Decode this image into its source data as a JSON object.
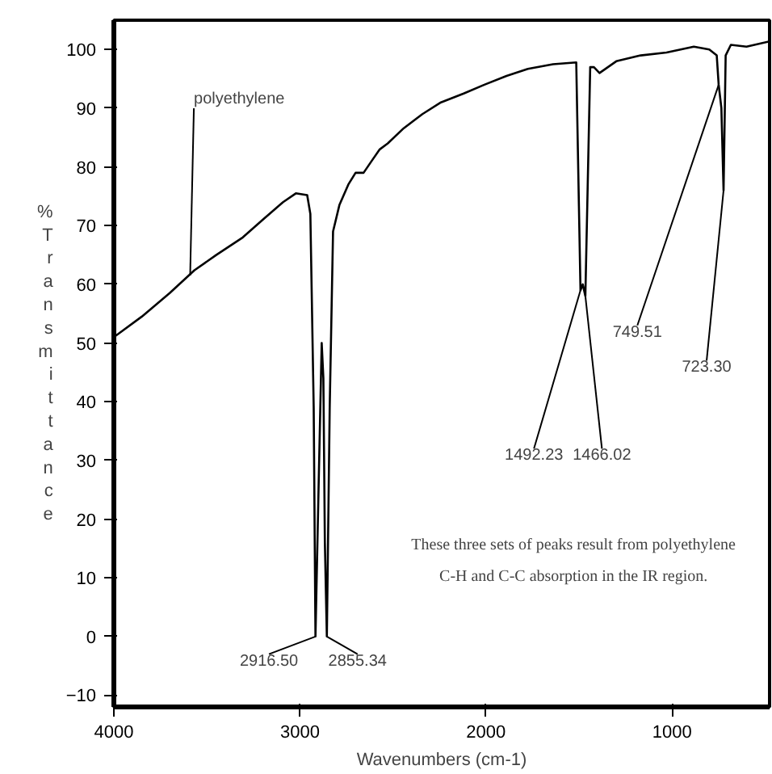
{
  "chart_data": {
    "type": "line",
    "xlabel": "Wavenumbers (cm-1)",
    "ylabel": "%Transmittance",
    "x": [
      4000,
      3850,
      3700,
      3567,
      3450,
      3307,
      3200,
      3091,
      3022,
      2961,
      2944,
      2926,
      2916.5,
      2900,
      2883,
      2874,
      2866,
      2855.34,
      2840,
      2822,
      2788,
      2740,
      2701,
      2658,
      2615,
      2571,
      2528,
      2442,
      2342,
      2242,
      2120,
      2009,
      1890,
      1775,
      1640,
      1515,
      1492.23,
      1480,
      1466.02,
      1440,
      1420,
      1390,
      1300,
      1169,
      1030,
      883,
      800,
      760,
      749.51,
      735,
      723.3,
      712,
      684,
      600,
      476
    ],
    "series": [
      {
        "color": "#000000",
        "values": [
          51,
          54.5,
          58.5,
          62.4,
          65,
          68,
          71,
          74,
          75.5,
          75.2,
          72,
          39,
          0,
          25,
          50,
          44,
          16,
          0,
          39,
          69,
          73.5,
          77,
          79,
          79,
          81,
          83,
          84,
          86.6,
          89,
          91,
          92.5,
          94,
          95.5,
          96.7,
          97.5,
          97.8,
          59,
          60,
          58,
          97,
          97,
          96,
          98,
          99,
          99.5,
          100.5,
          100,
          99,
          94,
          90,
          76,
          99,
          100.8,
          100.5,
          101.4
        ]
      }
    ],
    "xlim": [
      4000,
      476
    ],
    "ylim": [
      -12,
      105
    ],
    "xticks": [
      4000,
      3000,
      2000,
      1000
    ],
    "yticks": [
      -10,
      0,
      10,
      20,
      30,
      40,
      50,
      60,
      70,
      80,
      90,
      100
    ],
    "annotations": [
      {
        "text": "polyethylene",
        "x": 3590,
        "y": 61.5
      },
      {
        "text": "2916.50",
        "x": 2916.5,
        "y": 0
      },
      {
        "text": "2855.34",
        "x": 2855.34,
        "y": 0
      },
      {
        "text": "1492.23",
        "x": 1492.23,
        "y": 59
      },
      {
        "text": "1466.02",
        "x": 1466.02,
        "y": 58
      },
      {
        "text": "749.51",
        "x": 749.51,
        "y": 94
      },
      {
        "text": "723.30",
        "x": 723.3,
        "y": 76
      },
      "These three sets of peaks result from polyethylene",
      "C-H and C-C absorption in the IR region."
    ],
    "grid": false,
    "marker": "none",
    "line_style": "solid"
  }
}
